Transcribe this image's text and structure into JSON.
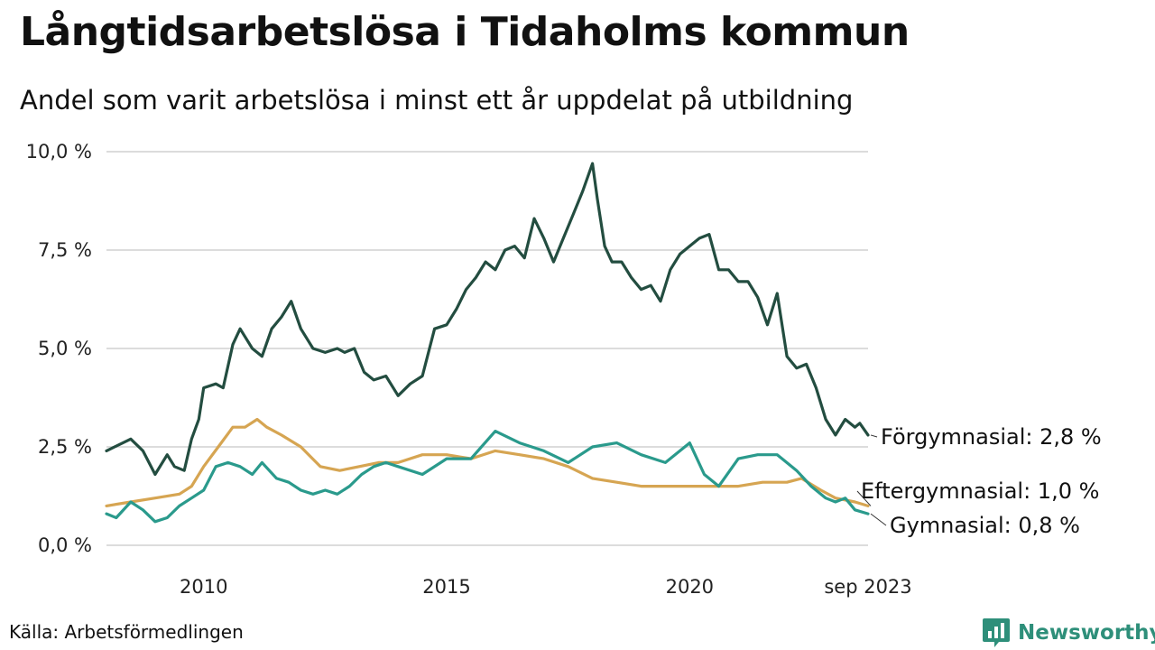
{
  "title": "Långtidsarbetslösa i Tidaholms kommun",
  "subtitle": "Andel som varit arbetslösa i minst ett år uppdelat på utbildning",
  "source": "Källa: Arbetsförmedlingen",
  "brand": "Newsworthy",
  "chart_data": {
    "type": "line",
    "title": "Långtidsarbetslösa i Tidaholms kommun",
    "xlabel": "",
    "ylabel": "",
    "x_range": [
      2008.0,
      2023.67
    ],
    "ylim": [
      0,
      10
    ],
    "grid": true,
    "y_ticks": [
      {
        "value": 0,
        "label": "0,0 %"
      },
      {
        "value": 2.5,
        "label": "2,5 %"
      },
      {
        "value": 5,
        "label": "5,0 %"
      },
      {
        "value": 7.5,
        "label": "7,5 %"
      },
      {
        "value": 10,
        "label": "10,0 %"
      }
    ],
    "x_ticks": [
      {
        "value": 2010,
        "label": "2010"
      },
      {
        "value": 2015,
        "label": "2015"
      },
      {
        "value": 2020,
        "label": "2020"
      },
      {
        "value": 2023.67,
        "label": "sep 2023"
      }
    ],
    "series": [
      {
        "name": "Förgymnasial",
        "end_label": "Förgymnasial: 2,8 %",
        "color": "#234d40",
        "x": [
          2008.0,
          2008.5,
          2008.75,
          2009.0,
          2009.25,
          2009.4,
          2009.6,
          2009.75,
          2009.9,
          2010.0,
          2010.25,
          2010.4,
          2010.6,
          2010.75,
          2011.0,
          2011.2,
          2011.4,
          2011.6,
          2011.8,
          2012.0,
          2012.25,
          2012.5,
          2012.75,
          2012.9,
          2013.1,
          2013.3,
          2013.5,
          2013.75,
          2014.0,
          2014.25,
          2014.5,
          2014.75,
          2015.0,
          2015.2,
          2015.4,
          2015.6,
          2015.8,
          2016.0,
          2016.2,
          2016.4,
          2016.6,
          2016.8,
          2017.0,
          2017.2,
          2017.4,
          2017.6,
          2017.8,
          2018.0,
          2018.1,
          2018.25,
          2018.4,
          2018.6,
          2018.8,
          2019.0,
          2019.2,
          2019.4,
          2019.6,
          2019.8,
          2020.0,
          2020.2,
          2020.4,
          2020.6,
          2020.8,
          2021.0,
          2021.2,
          2021.4,
          2021.6,
          2021.8,
          2022.0,
          2022.2,
          2022.4,
          2022.6,
          2022.8,
          2023.0,
          2023.2,
          2023.4,
          2023.5,
          2023.67
        ],
        "values": [
          2.4,
          2.7,
          2.4,
          1.8,
          2.3,
          2.0,
          1.9,
          2.7,
          3.2,
          4.0,
          4.1,
          4.0,
          5.1,
          5.5,
          5.0,
          4.8,
          5.5,
          5.8,
          6.2,
          5.5,
          5.0,
          4.9,
          5.0,
          4.9,
          5.0,
          4.4,
          4.2,
          4.3,
          3.8,
          4.1,
          4.3,
          5.5,
          5.6,
          6.0,
          6.5,
          6.8,
          7.2,
          7.0,
          7.5,
          7.6,
          7.3,
          8.3,
          7.8,
          7.2,
          7.8,
          8.4,
          9.0,
          9.7,
          8.8,
          7.6,
          7.2,
          7.2,
          6.8,
          6.5,
          6.6,
          6.2,
          7.0,
          7.4,
          7.6,
          7.8,
          7.9,
          7.0,
          7.0,
          6.7,
          6.7,
          6.3,
          5.6,
          6.4,
          4.8,
          4.5,
          4.6,
          4.0,
          3.2,
          2.8,
          3.2,
          3.0,
          3.1,
          2.8
        ]
      },
      {
        "name": "Eftergymnasial",
        "end_label": "Eftergymnasial: 1,0 %",
        "color": "#d6a552",
        "x": [
          2008.0,
          2008.5,
          2009.0,
          2009.5,
          2009.75,
          2010.0,
          2010.3,
          2010.6,
          2010.85,
          2011.1,
          2011.3,
          2011.6,
          2012.0,
          2012.4,
          2012.8,
          2013.2,
          2013.6,
          2014.0,
          2014.5,
          2015.0,
          2015.5,
          2016.0,
          2016.5,
          2017.0,
          2017.5,
          2018.0,
          2018.5,
          2019.0,
          2019.5,
          2020.0,
          2020.5,
          2021.0,
          2021.5,
          2022.0,
          2022.3,
          2022.7,
          2023.0,
          2023.4,
          2023.67
        ],
        "values": [
          1.0,
          1.1,
          1.2,
          1.3,
          1.5,
          2.0,
          2.5,
          3.0,
          3.0,
          3.2,
          3.0,
          2.8,
          2.5,
          2.0,
          1.9,
          2.0,
          2.1,
          2.1,
          2.3,
          2.3,
          2.2,
          2.4,
          2.3,
          2.2,
          2.0,
          1.7,
          1.6,
          1.5,
          1.5,
          1.5,
          1.5,
          1.5,
          1.6,
          1.6,
          1.7,
          1.4,
          1.2,
          1.1,
          1.0
        ]
      },
      {
        "name": "Gymnasial",
        "end_label": "Gymnasial: 0,8 %",
        "color": "#2a9a8c",
        "x": [
          2008.0,
          2008.2,
          2008.5,
          2008.75,
          2009.0,
          2009.25,
          2009.5,
          2009.75,
          2010.0,
          2010.25,
          2010.5,
          2010.75,
          2011.0,
          2011.2,
          2011.5,
          2011.75,
          2012.0,
          2012.25,
          2012.5,
          2012.75,
          2013.0,
          2013.25,
          2013.5,
          2013.75,
          2014.0,
          2014.5,
          2015.0,
          2015.5,
          2016.0,
          2016.5,
          2017.0,
          2017.5,
          2018.0,
          2018.5,
          2019.0,
          2019.5,
          2020.0,
          2020.3,
          2020.6,
          2021.0,
          2021.4,
          2021.8,
          2022.2,
          2022.5,
          2022.8,
          2023.0,
          2023.2,
          2023.4,
          2023.67
        ],
        "values": [
          0.8,
          0.7,
          1.1,
          0.9,
          0.6,
          0.7,
          1.0,
          1.2,
          1.4,
          2.0,
          2.1,
          2.0,
          1.8,
          2.1,
          1.7,
          1.6,
          1.4,
          1.3,
          1.4,
          1.3,
          1.5,
          1.8,
          2.0,
          2.1,
          2.0,
          1.8,
          2.2,
          2.2,
          2.9,
          2.6,
          2.4,
          2.1,
          2.5,
          2.6,
          2.3,
          2.1,
          2.6,
          1.8,
          1.5,
          2.2,
          2.3,
          2.3,
          1.9,
          1.5,
          1.2,
          1.1,
          1.2,
          0.9,
          0.8
        ]
      }
    ]
  }
}
